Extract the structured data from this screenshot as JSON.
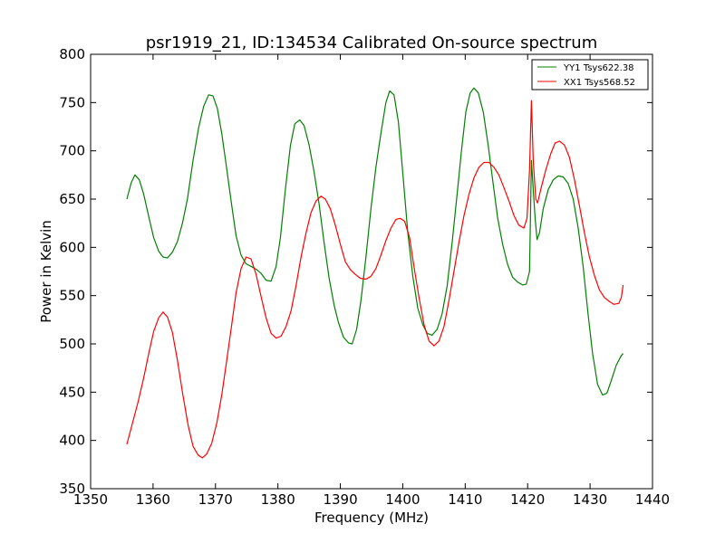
{
  "chart_data": {
    "type": "line",
    "title": "psr1919_21, ID:134534 Calibrated On-source spectrum",
    "xlabel": "Frequency (MHz)",
    "ylabel": "Power in Kelvin",
    "xlim": [
      1350,
      1440
    ],
    "ylim": [
      350,
      800
    ],
    "xticks": [
      1350,
      1360,
      1370,
      1380,
      1390,
      1400,
      1410,
      1420,
      1430,
      1440
    ],
    "yticks": [
      350,
      400,
      450,
      500,
      550,
      600,
      650,
      700,
      750,
      800
    ],
    "grid": false,
    "legend_position": "top-right",
    "series": [
      {
        "name": "YY1 Tsys622.38",
        "color": "#008000",
        "points": [
          [
            1355.8,
            650
          ],
          [
            1356.5,
            667
          ],
          [
            1357.1,
            675
          ],
          [
            1357.8,
            670
          ],
          [
            1358.5,
            655
          ],
          [
            1359.3,
            632
          ],
          [
            1360.1,
            610
          ],
          [
            1360.9,
            596
          ],
          [
            1361.6,
            590
          ],
          [
            1362.3,
            589
          ],
          [
            1363.1,
            595
          ],
          [
            1363.9,
            606
          ],
          [
            1364.7,
            625
          ],
          [
            1365.5,
            650
          ],
          [
            1366.4,
            690
          ],
          [
            1367.3,
            724
          ],
          [
            1368.1,
            746
          ],
          [
            1368.9,
            758
          ],
          [
            1369.6,
            757
          ],
          [
            1370.3,
            744
          ],
          [
            1371.0,
            718
          ],
          [
            1371.7,
            686
          ],
          [
            1372.5,
            648
          ],
          [
            1373.3,
            612
          ],
          [
            1374.1,
            592
          ],
          [
            1374.9,
            583
          ],
          [
            1375.8,
            580
          ],
          [
            1376.6,
            577
          ],
          [
            1377.3,
            573
          ],
          [
            1378.1,
            566
          ],
          [
            1378.9,
            565
          ],
          [
            1379.7,
            580
          ],
          [
            1380.4,
            610
          ],
          [
            1381.2,
            660
          ],
          [
            1382.0,
            705
          ],
          [
            1382.7,
            728
          ],
          [
            1383.5,
            732
          ],
          [
            1384.2,
            726
          ],
          [
            1385.0,
            706
          ],
          [
            1385.8,
            678
          ],
          [
            1386.6,
            645
          ],
          [
            1387.4,
            605
          ],
          [
            1388.2,
            568
          ],
          [
            1389.0,
            540
          ],
          [
            1389.7,
            522
          ],
          [
            1390.5,
            507
          ],
          [
            1391.3,
            501
          ],
          [
            1391.9,
            500
          ],
          [
            1392.6,
            515
          ],
          [
            1393.3,
            545
          ],
          [
            1394.1,
            590
          ],
          [
            1394.9,
            640
          ],
          [
            1395.7,
            683
          ],
          [
            1396.5,
            718
          ],
          [
            1397.3,
            750
          ],
          [
            1397.9,
            762
          ],
          [
            1398.6,
            758
          ],
          [
            1399.3,
            730
          ],
          [
            1400.1,
            670
          ],
          [
            1400.8,
            615
          ],
          [
            1401.6,
            570
          ],
          [
            1402.4,
            537
          ],
          [
            1403.2,
            520
          ],
          [
            1403.9,
            511
          ],
          [
            1404.7,
            509
          ],
          [
            1405.5,
            515
          ],
          [
            1406.3,
            531
          ],
          [
            1407.1,
            560
          ],
          [
            1407.9,
            605
          ],
          [
            1408.7,
            655
          ],
          [
            1409.4,
            700
          ],
          [
            1410.1,
            740
          ],
          [
            1410.8,
            760
          ],
          [
            1411.4,
            765
          ],
          [
            1412.1,
            760
          ],
          [
            1412.9,
            740
          ],
          [
            1413.7,
            705
          ],
          [
            1414.4,
            670
          ],
          [
            1415.2,
            630
          ],
          [
            1416.0,
            603
          ],
          [
            1416.8,
            582
          ],
          [
            1417.6,
            569
          ],
          [
            1418.4,
            564
          ],
          [
            1419.2,
            561
          ],
          [
            1419.8,
            562
          ],
          [
            1420.3,
            575
          ],
          [
            1420.6,
            690
          ],
          [
            1420.9,
            660
          ],
          [
            1421.2,
            630
          ],
          [
            1421.5,
            608
          ],
          [
            1421.9,
            615
          ],
          [
            1422.5,
            640
          ],
          [
            1423.3,
            660
          ],
          [
            1424.1,
            670
          ],
          [
            1424.9,
            674
          ],
          [
            1425.7,
            673
          ],
          [
            1426.5,
            666
          ],
          [
            1427.3,
            650
          ],
          [
            1428.1,
            620
          ],
          [
            1428.9,
            580
          ],
          [
            1429.7,
            530
          ],
          [
            1430.4,
            490
          ],
          [
            1431.2,
            458
          ],
          [
            1432.0,
            447
          ],
          [
            1432.7,
            449
          ],
          [
            1433.4,
            462
          ],
          [
            1434.2,
            478
          ],
          [
            1435.0,
            488
          ],
          [
            1435.3,
            490
          ]
        ]
      },
      {
        "name": "XX1 Tsys568.52",
        "color": "#ff0000",
        "points": [
          [
            1355.8,
            396
          ],
          [
            1356.7,
            418
          ],
          [
            1357.6,
            440
          ],
          [
            1358.5,
            465
          ],
          [
            1359.3,
            490
          ],
          [
            1360.1,
            513
          ],
          [
            1360.9,
            527
          ],
          [
            1361.6,
            533
          ],
          [
            1362.3,
            528
          ],
          [
            1363.1,
            512
          ],
          [
            1363.9,
            483
          ],
          [
            1364.7,
            450
          ],
          [
            1365.6,
            416
          ],
          [
            1366.4,
            394
          ],
          [
            1367.2,
            385
          ],
          [
            1367.9,
            382
          ],
          [
            1368.6,
            386
          ],
          [
            1369.4,
            397
          ],
          [
            1370.2,
            418
          ],
          [
            1371.0,
            447
          ],
          [
            1371.8,
            483
          ],
          [
            1372.6,
            520
          ],
          [
            1373.3,
            553
          ],
          [
            1374.1,
            578
          ],
          [
            1374.9,
            590
          ],
          [
            1375.7,
            588
          ],
          [
            1376.5,
            572
          ],
          [
            1377.3,
            549
          ],
          [
            1378.1,
            527
          ],
          [
            1378.9,
            511
          ],
          [
            1379.7,
            506
          ],
          [
            1380.5,
            508
          ],
          [
            1381.3,
            518
          ],
          [
            1382.1,
            534
          ],
          [
            1382.9,
            560
          ],
          [
            1383.7,
            590
          ],
          [
            1384.5,
            615
          ],
          [
            1385.3,
            636
          ],
          [
            1386.1,
            648
          ],
          [
            1386.9,
            653
          ],
          [
            1387.6,
            650
          ],
          [
            1388.4,
            640
          ],
          [
            1389.2,
            623
          ],
          [
            1390.0,
            603
          ],
          [
            1390.8,
            585
          ],
          [
            1391.6,
            577
          ],
          [
            1392.4,
            572
          ],
          [
            1393.2,
            568
          ],
          [
            1394.1,
            567
          ],
          [
            1394.9,
            570
          ],
          [
            1395.7,
            578
          ],
          [
            1396.5,
            592
          ],
          [
            1397.3,
            607
          ],
          [
            1398.1,
            620
          ],
          [
            1398.9,
            629
          ],
          [
            1399.6,
            630
          ],
          [
            1400.3,
            627
          ],
          [
            1401.1,
            610
          ],
          [
            1401.8,
            580
          ],
          [
            1402.6,
            548
          ],
          [
            1403.4,
            520
          ],
          [
            1404.2,
            503
          ],
          [
            1405.0,
            498
          ],
          [
            1405.8,
            503
          ],
          [
            1406.6,
            518
          ],
          [
            1407.4,
            545
          ],
          [
            1408.2,
            575
          ],
          [
            1409.0,
            605
          ],
          [
            1409.8,
            633
          ],
          [
            1410.6,
            655
          ],
          [
            1411.4,
            672
          ],
          [
            1412.2,
            683
          ],
          [
            1413.0,
            688
          ],
          [
            1413.8,
            688
          ],
          [
            1414.6,
            683
          ],
          [
            1415.4,
            675
          ],
          [
            1416.2,
            662
          ],
          [
            1417.0,
            648
          ],
          [
            1417.8,
            633
          ],
          [
            1418.6,
            623
          ],
          [
            1419.4,
            620
          ],
          [
            1419.9,
            630
          ],
          [
            1420.3,
            680
          ],
          [
            1420.6,
            752
          ],
          [
            1420.9,
            690
          ],
          [
            1421.3,
            650
          ],
          [
            1421.6,
            646
          ],
          [
            1422.1,
            660
          ],
          [
            1422.9,
            680
          ],
          [
            1423.7,
            697
          ],
          [
            1424.4,
            708
          ],
          [
            1425.1,
            710
          ],
          [
            1425.9,
            706
          ],
          [
            1426.7,
            693
          ],
          [
            1427.5,
            670
          ],
          [
            1428.3,
            643
          ],
          [
            1429.1,
            615
          ],
          [
            1429.9,
            590
          ],
          [
            1430.7,
            571
          ],
          [
            1431.5,
            556
          ],
          [
            1432.3,
            548
          ],
          [
            1433.1,
            544
          ],
          [
            1433.8,
            541
          ],
          [
            1434.6,
            542
          ],
          [
            1435.0,
            548
          ],
          [
            1435.3,
            561
          ]
        ]
      }
    ]
  }
}
